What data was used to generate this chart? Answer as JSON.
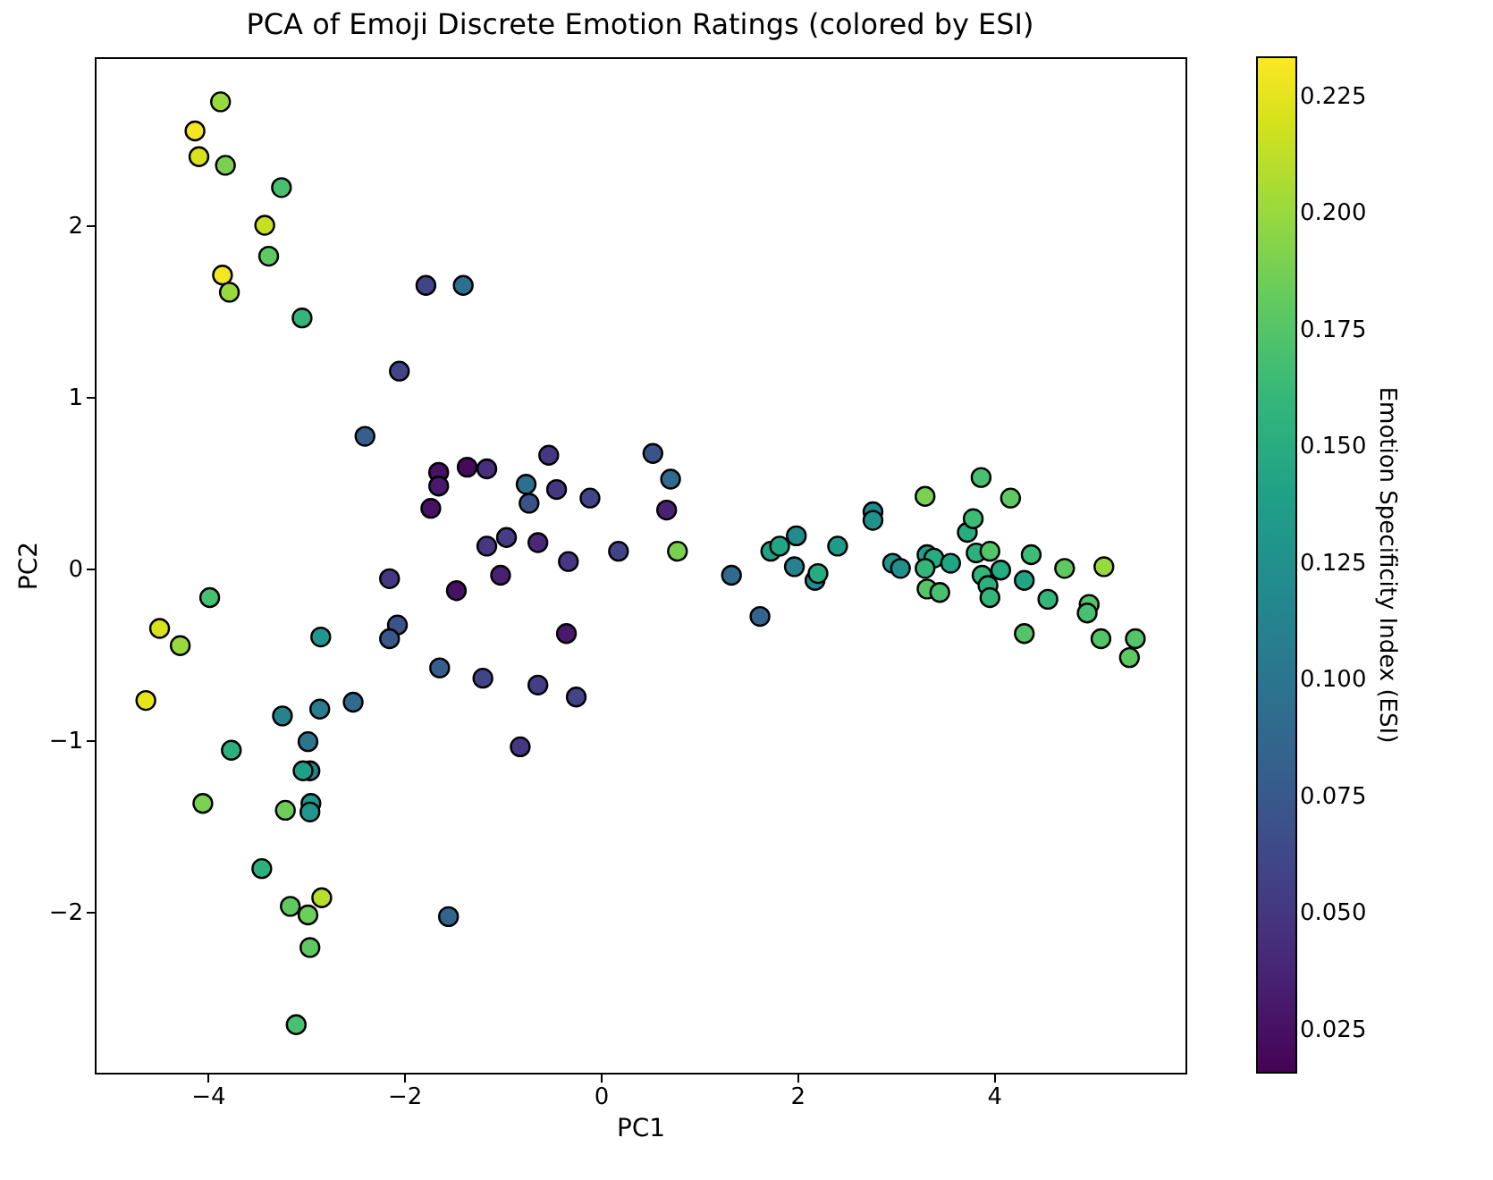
{
  "chart_data": {
    "type": "scatter",
    "title": "PCA of Emoji Discrete Emotion Ratings (colored by ESI)",
    "xlabel": "PC1",
    "ylabel": "PC2",
    "clabel": "Emotion Specificity Index (ESI)",
    "marker": "circle",
    "grid": false,
    "xlim": [
      -5.15,
      5.95
    ],
    "ylim": [
      -2.94,
      2.98
    ],
    "xticks": [
      -4,
      -2,
      0,
      2,
      4
    ],
    "yticks": [
      -2,
      -1,
      0,
      1,
      2
    ],
    "clim": [
      0.0158,
      0.2334
    ],
    "cticks": [
      0.025,
      {
        "value": 0.05,
        "label": "0.050"
      },
      0.075,
      {
        "value": 0.1,
        "label": "0.100"
      },
      0.125,
      {
        "value": 0.15,
        "label": "0.150"
      },
      0.175,
      {
        "value": 0.2,
        "label": "0.200"
      },
      0.225
    ],
    "x": [
      -3.87,
      -4.13,
      -4.09,
      -3.82,
      -3.25,
      -3.42,
      -3.38,
      -3.85,
      -3.78,
      -3.04,
      -1.78,
      -1.4,
      -2.05,
      -2.4,
      -1.65,
      -1.65,
      -1.36,
      -1.16,
      -1.73,
      -0.53,
      -0.76,
      -0.45,
      -0.73,
      -0.11,
      0.53,
      0.71,
      0.67,
      -1.16,
      -0.96,
      -0.64,
      -0.33,
      0.18,
      0.78,
      1.33,
      1.62,
      -2.15,
      -1.47,
      -1.02,
      -2.07,
      -2.15,
      -0.35,
      -1.64,
      -1.2,
      -0.64,
      -0.25,
      -0.82,
      -1.55,
      -3.98,
      -4.49,
      -4.28,
      -4.63,
      -2.85,
      -3.24,
      -2.86,
      -2.52,
      -3.76,
      -2.98,
      -2.96,
      -3.03,
      -4.05,
      -3.21,
      -2.95,
      -2.96,
      -3.45,
      -3.16,
      -2.84,
      -2.98,
      -2.96,
      -3.1,
      1.73,
      1.82,
      1.99,
      1.97,
      2.18,
      2.21,
      2.41,
      2.77,
      2.77,
      2.97,
      3.05,
      3.3,
      3.32,
      3.39,
      3.3,
      3.32,
      3.45,
      3.56,
      3.73,
      3.79,
      3.87,
      3.82,
      3.96,
      3.88,
      3.94,
      3.96,
      4.07,
      4.17,
      4.31,
      4.31,
      4.38,
      4.55,
      4.72,
      4.97,
      4.95,
      5.12,
      5.09,
      5.44,
      5.38
    ],
    "values": [
      2.72,
      2.55,
      2.4,
      2.35,
      2.22,
      2.0,
      1.82,
      1.71,
      1.61,
      1.46,
      1.65,
      1.65,
      1.15,
      0.77,
      0.56,
      0.48,
      0.59,
      0.58,
      0.35,
      0.66,
      0.49,
      0.46,
      0.38,
      0.41,
      0.67,
      0.52,
      0.34,
      0.13,
      0.18,
      0.15,
      0.04,
      0.1,
      0.1,
      -0.04,
      -0.28,
      -0.06,
      -0.13,
      -0.04,
      -0.33,
      -0.41,
      -0.38,
      -0.58,
      -0.64,
      -0.68,
      -0.75,
      -1.04,
      -2.03,
      -0.17,
      -0.35,
      -0.45,
      -0.77,
      -0.4,
      -0.86,
      -0.82,
      -0.78,
      -1.06,
      -1.01,
      -1.18,
      -1.18,
      -1.37,
      -1.41,
      -1.37,
      -1.42,
      -1.75,
      -1.97,
      -1.92,
      -2.02,
      -2.21,
      -2.66,
      0.1,
      0.13,
      0.19,
      0.01,
      -0.07,
      -0.03,
      0.13,
      0.33,
      0.28,
      0.03,
      0.0,
      0.42,
      0.08,
      0.06,
      0.0,
      -0.12,
      -0.14,
      0.03,
      0.21,
      0.29,
      0.53,
      0.09,
      0.1,
      -0.04,
      -0.1,
      -0.17,
      -0.01,
      0.41,
      -0.07,
      -0.38,
      0.08,
      -0.18,
      0.0,
      -0.21,
      -0.26,
      0.01,
      -0.41,
      -0.41,
      -0.52
    ],
    "cvalues": [
      0.2,
      0.23,
      0.22,
      0.19,
      0.17,
      0.215,
      0.18,
      0.23,
      0.2,
      0.16,
      0.06,
      0.095,
      0.06,
      0.08,
      0.025,
      0.03,
      0.02,
      0.045,
      0.025,
      0.05,
      0.095,
      0.05,
      0.07,
      0.06,
      0.07,
      0.09,
      0.035,
      0.05,
      0.055,
      0.04,
      0.05,
      0.06,
      0.19,
      0.09,
      0.085,
      0.05,
      0.025,
      0.035,
      0.07,
      0.075,
      0.03,
      0.08,
      0.06,
      0.055,
      0.06,
      0.05,
      0.085,
      0.17,
      0.22,
      0.2,
      0.225,
      0.13,
      0.11,
      0.105,
      0.09,
      0.155,
      0.1,
      0.11,
      0.14,
      0.19,
      0.185,
      0.13,
      0.13,
      0.155,
      0.18,
      0.21,
      0.185,
      0.18,
      0.17,
      0.14,
      0.145,
      0.12,
      0.11,
      0.12,
      0.15,
      0.135,
      0.12,
      0.125,
      0.13,
      0.125,
      0.19,
      0.14,
      0.15,
      0.16,
      0.175,
      0.17,
      0.145,
      0.15,
      0.165,
      0.17,
      0.155,
      0.175,
      0.16,
      0.155,
      0.16,
      0.15,
      0.18,
      0.145,
      0.175,
      0.165,
      0.16,
      0.18,
      0.175,
      0.17,
      0.2,
      0.175,
      0.175,
      0.18
    ]
  }
}
